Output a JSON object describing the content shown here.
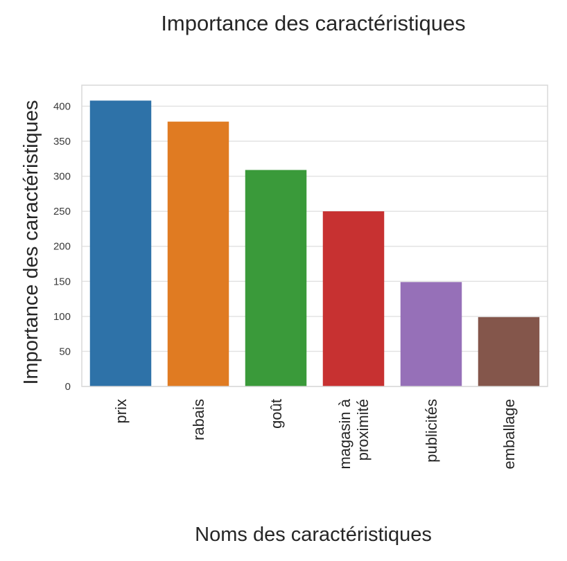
{
  "chart_data": {
    "type": "bar",
    "title": "Importance des caractéristiques",
    "xlabel": "Noms des caractéristiques",
    "ylabel": "Importance des caractéristiques",
    "categories": [
      [
        "prix"
      ],
      [
        "rabais"
      ],
      [
        "goût"
      ],
      [
        "magasin à",
        "proximité"
      ],
      [
        "publicités"
      ],
      [
        "emballage"
      ]
    ],
    "values": [
      408,
      378,
      309,
      250,
      149,
      99
    ],
    "colors": [
      "#2e72a8",
      "#e07b22",
      "#3a9a3a",
      "#c73131",
      "#9670b8",
      "#84564b"
    ],
    "ylim": [
      0,
      430
    ],
    "yticks": [
      0,
      50,
      100,
      150,
      200,
      250,
      300,
      350,
      400
    ],
    "grid": true,
    "legend": "none"
  }
}
